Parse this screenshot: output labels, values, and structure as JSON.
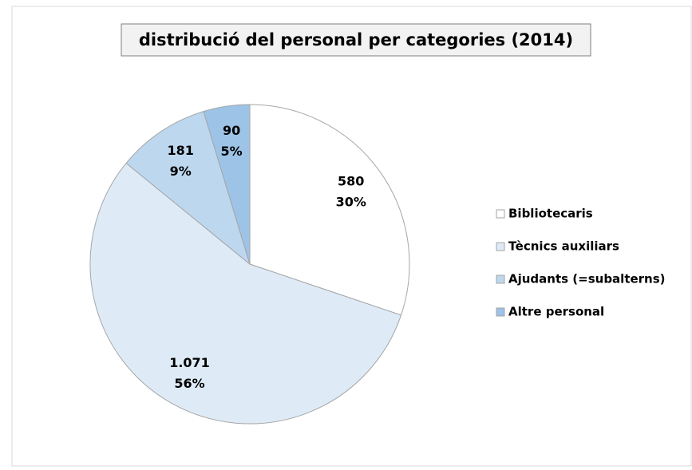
{
  "chart_data": {
    "type": "pie",
    "title": "distribució del personal per categories (2014)",
    "categories": [
      "Bibliotecaris",
      "Tècnics auxiliars",
      "Ajudants (=subalterns)",
      "Altre personal"
    ],
    "values": [
      580,
      1071,
      181,
      90
    ],
    "value_labels": [
      "580",
      "1.071",
      "181",
      "90"
    ],
    "percent_labels": [
      "30%",
      "56%",
      "9%",
      "5%"
    ],
    "colors": [
      "#ffffff",
      "#deebf7",
      "#bdd7ee",
      "#9dc3e6"
    ],
    "legend": "right"
  }
}
